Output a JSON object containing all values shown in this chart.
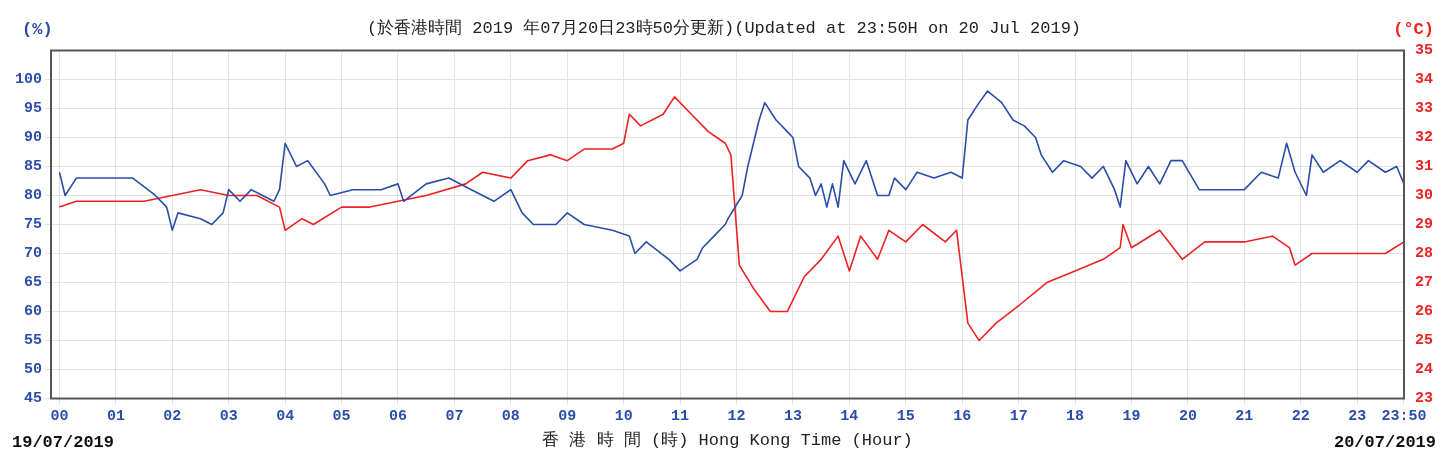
{
  "chart_data": {
    "type": "line",
    "title": "(於香港時間 2019 年07月20日23時50分更新)(Updated at 23:50H on 20 Jul 2019)",
    "xlabel": "香 港 時 間 (時) Hong Kong Time (Hour)",
    "ylabel": "(%)",
    "y2label": "(°C)",
    "annotations": [
      "19/07/2019",
      "20/07/2019"
    ],
    "xlim": [
      -0.15,
      23.83
    ],
    "xticks": [
      {
        "value": 0,
        "label": "00"
      },
      {
        "value": 1,
        "label": "01"
      },
      {
        "value": 2,
        "label": "02"
      },
      {
        "value": 3,
        "label": "03"
      },
      {
        "value": 4,
        "label": "04"
      },
      {
        "value": 5,
        "label": "05"
      },
      {
        "value": 6,
        "label": "06"
      },
      {
        "value": 7,
        "label": "07"
      },
      {
        "value": 8,
        "label": "08"
      },
      {
        "value": 9,
        "label": "09"
      },
      10,
      11,
      12,
      13,
      14,
      15,
      16,
      17,
      18,
      19,
      20,
      21,
      22,
      23,
      {
        "value": 23.83,
        "label": "23:50"
      }
    ],
    "ylim": [
      45,
      105
    ],
    "yticks": [
      45,
      50,
      55,
      60,
      65,
      70,
      75,
      80,
      85,
      90,
      95,
      100
    ],
    "y2lim": [
      23,
      35
    ],
    "y2ticks": [
      23,
      24,
      25,
      26,
      27,
      28,
      29,
      30,
      31,
      32,
      33,
      34,
      35
    ],
    "grid": true,
    "legend": false,
    "marker": "none",
    "line_style": "solid",
    "series": [
      {
        "color": "#2a4ea8",
        "x": [
          0,
          0.1,
          0.3,
          1.3,
          1.7,
          1.9,
          2.0,
          2.1,
          2.5,
          2.7,
          2.9,
          3.0,
          3.2,
          3.4,
          3.6,
          3.8,
          3.9,
          4.0,
          4.2,
          4.4,
          4.7,
          4.8,
          5.2,
          5.7,
          6.0,
          6.1,
          6.5,
          6.9,
          7.3,
          7.5,
          7.7,
          8.0,
          8.2,
          8.4,
          8.8,
          9.0,
          9.3,
          9.8,
          10.1,
          10.2,
          10.4,
          10.8,
          11.0,
          11.3,
          11.4,
          11.6,
          11.8,
          11.85,
          12.1,
          12.2,
          12.4,
          12.5,
          12.7,
          12.9,
          13.0,
          13.1,
          13.3,
          13.4,
          13.5,
          13.6,
          13.7,
          13.8,
          13.9,
          14.1,
          14.3,
          14.5,
          14.7,
          14.8,
          15.0,
          15.2,
          15.5,
          15.8,
          16.0,
          16.1,
          16.3,
          16.45,
          16.7,
          16.9,
          17.1,
          17.3,
          17.4,
          17.6,
          17.8,
          18.1,
          18.3,
          18.5,
          18.7,
          18.8,
          18.9,
          19.1,
          19.3,
          19.5,
          19.7,
          19.9,
          20.2,
          20.7,
          21.0,
          21.3,
          21.6,
          21.75,
          21.9,
          22.1,
          22.2,
          22.4,
          22.7,
          23.0,
          23.2,
          23.5,
          23.7,
          23.83
        ],
        "values": [
          84,
          80,
          83,
          83,
          80,
          78,
          74,
          77,
          76,
          75,
          77,
          81,
          79,
          81,
          80,
          79,
          81,
          89,
          85,
          86,
          82,
          80,
          81,
          81,
          82,
          79,
          82,
          83,
          81,
          80,
          79,
          81,
          77,
          75,
          75,
          77,
          75,
          74,
          73,
          70,
          72,
          69,
          67,
          69,
          71,
          73,
          75,
          76,
          80,
          85,
          93,
          96,
          93,
          91,
          90,
          85,
          83,
          80,
          82,
          78,
          82,
          78,
          86,
          82,
          86,
          80,
          80,
          83,
          81,
          84,
          83,
          84,
          83,
          93,
          96,
          98,
          96,
          93,
          92,
          90,
          87,
          84,
          86,
          85,
          83,
          85,
          81,
          78,
          86,
          82,
          85,
          82,
          86,
          86,
          81,
          81,
          81,
          84,
          83,
          89,
          84,
          80,
          87,
          84,
          86,
          84,
          86,
          84,
          85,
          82
        ]
      },
      {
        "color": "#ee2222",
        "axis": "y2",
        "x": [
          0,
          0.3,
          1.5,
          2.0,
          2.5,
          3.0,
          3.5,
          3.9,
          4.0,
          4.3,
          4.5,
          5.0,
          5.5,
          6.0,
          6.5,
          7.2,
          7.5,
          8.0,
          8.3,
          8.7,
          9.0,
          9.3,
          9.8,
          10.0,
          10.1,
          10.3,
          10.7,
          10.9,
          11.2,
          11.5,
          11.8,
          11.9,
          12.05,
          12.3,
          12.6,
          12.9,
          13.2,
          13.5,
          13.8,
          14.0,
          14.2,
          14.5,
          14.7,
          15.0,
          15.3,
          15.7,
          15.9,
          16.1,
          16.3,
          16.6,
          17.0,
          17.5,
          18.0,
          18.5,
          18.8,
          18.85,
          19.0,
          19.5,
          19.9,
          20.3,
          21.0,
          21.5,
          21.8,
          21.9,
          22.2,
          23.0,
          23.5,
          23.83
        ],
        "values": [
          29.6,
          29.8,
          29.8,
          30.0,
          30.2,
          30.0,
          30.0,
          29.6,
          28.8,
          29.2,
          29.0,
          29.6,
          29.6,
          29.8,
          30.0,
          30.4,
          30.8,
          30.6,
          31.2,
          31.4,
          31.2,
          31.6,
          31.6,
          31.8,
          32.8,
          32.4,
          32.8,
          33.4,
          32.8,
          32.2,
          31.8,
          31.4,
          27.6,
          26.8,
          26.0,
          26.0,
          27.2,
          27.8,
          28.6,
          27.4,
          28.6,
          27.8,
          28.8,
          28.4,
          29.0,
          28.4,
          28.8,
          25.6,
          25.0,
          25.6,
          26.2,
          27.0,
          27.4,
          27.8,
          28.2,
          29.0,
          28.2,
          28.8,
          27.8,
          28.4,
          28.4,
          28.6,
          28.2,
          27.6,
          28.0,
          28.0,
          28.0,
          28.4
        ]
      }
    ]
  }
}
